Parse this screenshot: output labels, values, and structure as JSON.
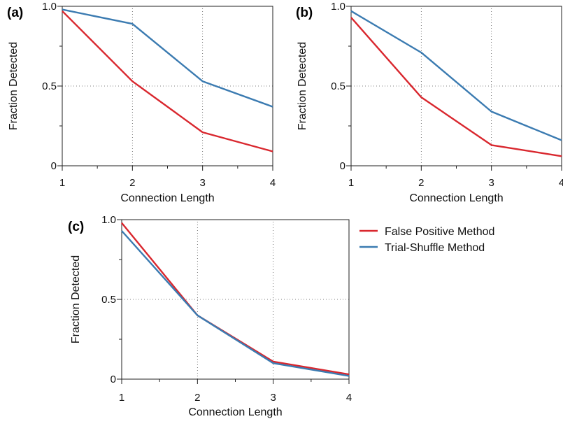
{
  "colors": {
    "false_positive": "#d9272e",
    "trial_shuffle": "#3b7bb1"
  },
  "legend": {
    "position": "right of panel (c)",
    "entries": [
      "False Positive Method",
      "Trial-Shuffle Method"
    ]
  },
  "chart_data": [
    {
      "type": "line",
      "panel_label": "(a)",
      "xlabel": "Connection Length",
      "ylabel": "Fraction Detected",
      "xlim": [
        1,
        4
      ],
      "ylim": [
        0,
        1.0
      ],
      "xticks": [
        "1",
        "2",
        "3",
        "4"
      ],
      "yticks": [
        "0",
        "0.5",
        "1.0"
      ],
      "grid": true,
      "x": [
        1,
        2,
        3,
        4
      ],
      "series": [
        {
          "name": "False Positive Method",
          "color": "#d9272e",
          "values": [
            0.97,
            0.53,
            0.21,
            0.09
          ]
        },
        {
          "name": "Trial-Shuffle Method",
          "color": "#3b7bb1",
          "values": [
            0.98,
            0.89,
            0.53,
            0.37
          ]
        }
      ]
    },
    {
      "type": "line",
      "panel_label": "(b)",
      "xlabel": "Connection Length",
      "ylabel": "Fraction Detected",
      "xlim": [
        1,
        4
      ],
      "ylim": [
        0,
        1.0
      ],
      "xticks": [
        "1",
        "2",
        "3",
        "4"
      ],
      "yticks": [
        "0",
        "0.5",
        "1.0"
      ],
      "grid": true,
      "x": [
        1,
        2,
        3,
        4
      ],
      "series": [
        {
          "name": "False Positive Method",
          "color": "#d9272e",
          "values": [
            0.93,
            0.43,
            0.13,
            0.06
          ]
        },
        {
          "name": "Trial-Shuffle Method",
          "color": "#3b7bb1",
          "values": [
            0.97,
            0.71,
            0.34,
            0.16
          ]
        }
      ]
    },
    {
      "type": "line",
      "panel_label": "(c)",
      "xlabel": "Connection Length",
      "ylabel": "Fraction Detected",
      "xlim": [
        1,
        4
      ],
      "ylim": [
        0,
        1.0
      ],
      "xticks": [
        "1",
        "2",
        "3",
        "4"
      ],
      "yticks": [
        "0",
        "0.5",
        "1.0"
      ],
      "grid": true,
      "x": [
        1,
        2,
        3,
        4
      ],
      "series": [
        {
          "name": "False Positive Method",
          "color": "#d9272e",
          "values": [
            0.98,
            0.4,
            0.11,
            0.03
          ]
        },
        {
          "name": "Trial-Shuffle Method",
          "color": "#3b7bb1",
          "values": [
            0.93,
            0.4,
            0.1,
            0.02
          ]
        }
      ]
    }
  ]
}
